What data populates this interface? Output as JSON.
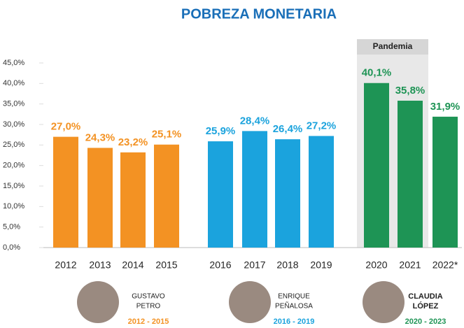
{
  "chart_data": {
    "type": "bar",
    "title": "POBREZA MONETARIA",
    "categories": [
      "2012",
      "2013",
      "2014",
      "2015",
      "2016",
      "2017",
      "2018",
      "2019",
      "2020",
      "2021",
      "2022*"
    ],
    "values": [
      27.0,
      24.3,
      23.2,
      25.1,
      25.9,
      28.4,
      26.4,
      27.2,
      40.1,
      35.8,
      31.9
    ],
    "value_labels": [
      "27,0%",
      "24,3%",
      "23,2%",
      "25,1%",
      "25,9%",
      "28,4%",
      "26,4%",
      "27,2%",
      "40,1%",
      "35,8%",
      "31,9%"
    ],
    "colors": [
      "#f39223",
      "#f39223",
      "#f39223",
      "#f39223",
      "#1ba3dd",
      "#1ba3dd",
      "#1ba3dd",
      "#1ba3dd",
      "#1e9455",
      "#1e9455",
      "#1e9455"
    ],
    "ylim": [
      0,
      45
    ],
    "yticks": [
      {
        "value": 0,
        "label": "0,0%"
      },
      {
        "value": 5,
        "label": "5,0%"
      },
      {
        "value": 10,
        "label": "10,0%"
      },
      {
        "value": 15,
        "label": "15,0%"
      },
      {
        "value": 20,
        "label": "20,0%"
      },
      {
        "value": 25,
        "label": "25,0%"
      },
      {
        "value": 30,
        "label": "30,0%"
      },
      {
        "value": 35,
        "label": "35,0%"
      },
      {
        "value": 40,
        "label": "40,0%"
      },
      {
        "value": 45,
        "label": "45,0%"
      }
    ],
    "grid": false,
    "annotation": "Pandemia",
    "groups": [
      {
        "name": [
          "GUSTAVO",
          "PETRO"
        ],
        "years": "2012 - 2015"
      },
      {
        "name": [
          "ENRIQUE",
          "PEÑALOSA"
        ],
        "years": "2016 - 2019"
      },
      {
        "name": [
          "CLAUDIA",
          "LÓPEZ"
        ],
        "years": "2020 - 2023"
      }
    ]
  }
}
